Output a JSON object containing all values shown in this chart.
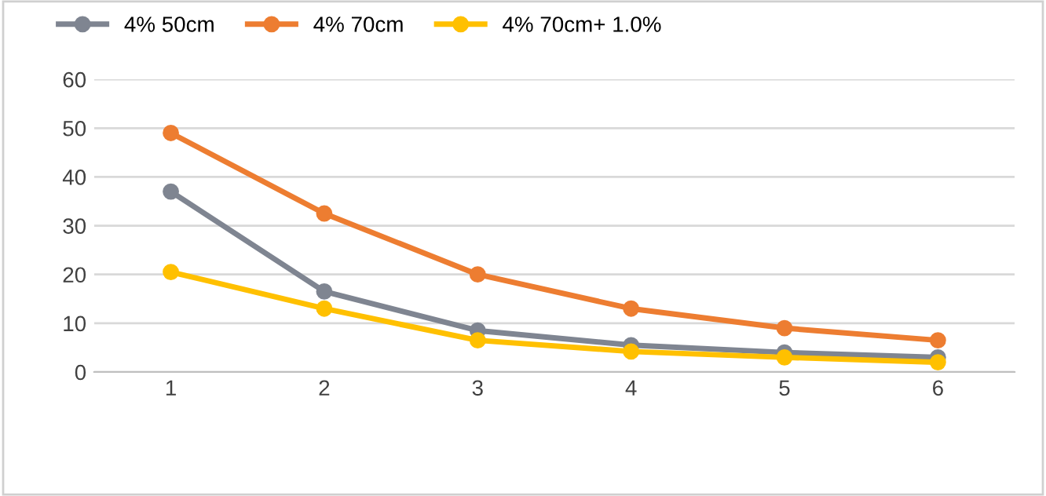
{
  "chart_data": {
    "type": "line",
    "categories": [
      "1",
      "2",
      "3",
      "4",
      "5",
      "6"
    ],
    "series": [
      {
        "name": "4% 50cm",
        "color": "#7f8591",
        "values": [
          37,
          16.5,
          8.5,
          5.5,
          4,
          3
        ]
      },
      {
        "name": "4% 70cm",
        "color": "#ed7d31",
        "values": [
          49,
          32.5,
          20,
          13,
          9,
          6.5
        ]
      },
      {
        "name": "4% 70cm+ 1.0%",
        "color": "#ffc000",
        "values": [
          20.5,
          13,
          6.5,
          4.2,
          3,
          2
        ]
      }
    ],
    "ylim": [
      0,
      60
    ],
    "yticks": [
      0,
      10,
      20,
      30,
      40,
      50,
      60
    ],
    "grid": "y",
    "legend": "top left",
    "marker": "circle",
    "line_style": "solid"
  }
}
